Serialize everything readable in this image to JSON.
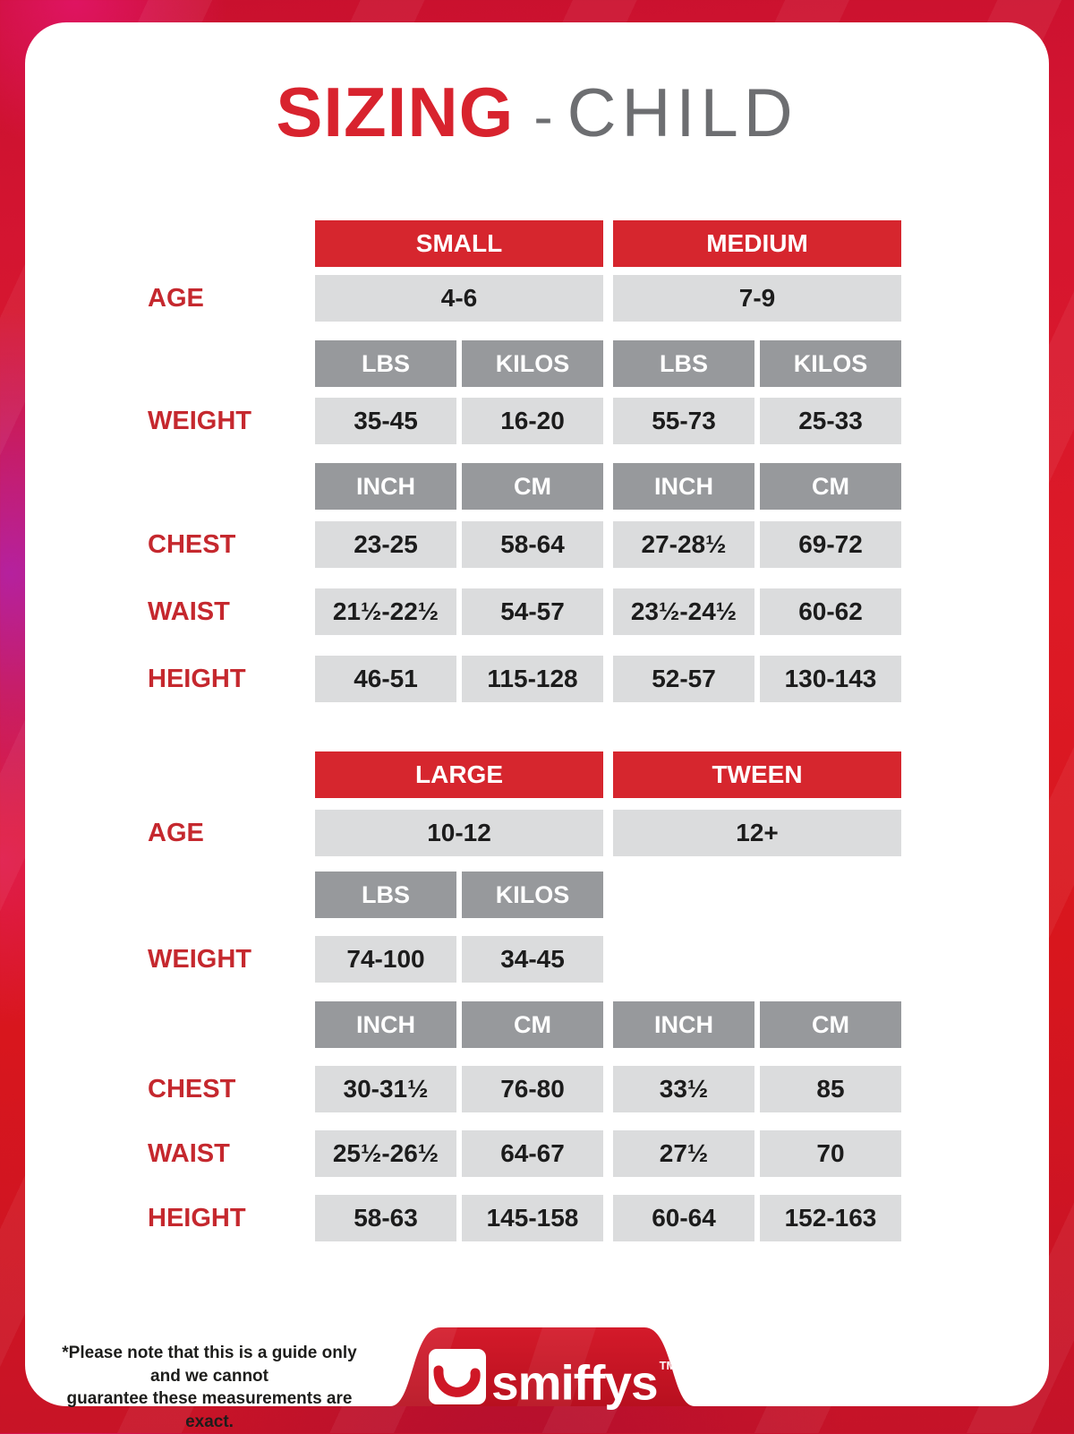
{
  "title": {
    "primary": "SIZING",
    "separator": "-",
    "secondary": "CHILD"
  },
  "colors": {
    "header_red": "#d6262e",
    "subheader_gray": "#97999c",
    "cell_gray": "#dbdcdd",
    "label_red": "#c5282e",
    "title_red": "#d8232e",
    "title_gray": "#6d6e71",
    "text_dark": "#1c1c1c",
    "logo_red": "#cf1726",
    "background_red": "#d8161d",
    "background_magenta": "#b5219e"
  },
  "tables": [
    {
      "name": "small-medium",
      "rows": [
        {
          "type": "size",
          "name": "sizes",
          "label": "",
          "cells": [
            {
              "text": "SMALL",
              "span": 2
            },
            {
              "text": "MEDIUM",
              "span": 2
            }
          ]
        },
        {
          "type": "data",
          "name": "age",
          "label": "AGE",
          "cells": [
            {
              "text": "4-6",
              "span": 2
            },
            {
              "text": "7-9",
              "span": 2
            }
          ]
        },
        {
          "type": "unit",
          "name": "weight-units",
          "label": "",
          "cells": [
            {
              "text": "LBS",
              "span": 1
            },
            {
              "text": "KILOS",
              "span": 1
            },
            {
              "text": "LBS",
              "span": 1
            },
            {
              "text": "KILOS",
              "span": 1
            }
          ]
        },
        {
          "type": "data",
          "name": "weight",
          "label": "WEIGHT",
          "cells": [
            {
              "text": "35-45",
              "span": 1
            },
            {
              "text": "16-20",
              "span": 1
            },
            {
              "text": "55-73",
              "span": 1
            },
            {
              "text": "25-33",
              "span": 1
            }
          ]
        },
        {
          "type": "unit",
          "name": "measure-units",
          "label": "",
          "cells": [
            {
              "text": "INCH",
              "span": 1
            },
            {
              "text": "CM",
              "span": 1
            },
            {
              "text": "INCH",
              "span": 1
            },
            {
              "text": "CM",
              "span": 1
            }
          ]
        },
        {
          "type": "data",
          "name": "chest",
          "label": "CHEST",
          "cells": [
            {
              "text": "23-25",
              "span": 1
            },
            {
              "text": "58-64",
              "span": 1
            },
            {
              "text": "27-28½",
              "span": 1
            },
            {
              "text": "69-72",
              "span": 1
            }
          ]
        },
        {
          "type": "data",
          "name": "waist",
          "label": "WAIST",
          "cells": [
            {
              "text": "21½-22½",
              "span": 1
            },
            {
              "text": "54-57",
              "span": 1
            },
            {
              "text": "23½-24½",
              "span": 1
            },
            {
              "text": "60-62",
              "span": 1
            }
          ]
        },
        {
          "type": "data",
          "name": "height",
          "label": "HEIGHT",
          "cells": [
            {
              "text": "46-51",
              "span": 1
            },
            {
              "text": "115-128",
              "span": 1
            },
            {
              "text": "52-57",
              "span": 1
            },
            {
              "text": "130-143",
              "span": 1
            }
          ]
        }
      ]
    },
    {
      "name": "large-tween",
      "rows": [
        {
          "type": "size",
          "name": "sizes",
          "label": "",
          "cells": [
            {
              "text": "LARGE",
              "span": 2
            },
            {
              "text": "TWEEN",
              "span": 2
            }
          ]
        },
        {
          "type": "data",
          "name": "age",
          "label": "AGE",
          "cells": [
            {
              "text": "10-12",
              "span": 2
            },
            {
              "text": "12+",
              "span": 2
            }
          ]
        },
        {
          "type": "unit",
          "name": "weight-units",
          "label": "",
          "cells": [
            {
              "text": "LBS",
              "span": 1
            },
            {
              "text": "KILOS",
              "span": 1
            }
          ]
        },
        {
          "type": "data",
          "name": "weight",
          "label": "WEIGHT",
          "cells": [
            {
              "text": "74-100",
              "span": 1
            },
            {
              "text": "34-45",
              "span": 1
            }
          ]
        },
        {
          "type": "unit",
          "name": "measure-units",
          "label": "",
          "cells": [
            {
              "text": "INCH",
              "span": 1
            },
            {
              "text": "CM",
              "span": 1
            },
            {
              "text": "INCH",
              "span": 1
            },
            {
              "text": "CM",
              "span": 1
            }
          ]
        },
        {
          "type": "data",
          "name": "chest",
          "label": "CHEST",
          "cells": [
            {
              "text": "30-31½",
              "span": 1
            },
            {
              "text": "76-80",
              "span": 1
            },
            {
              "text": "33½",
              "span": 1
            },
            {
              "text": "85",
              "span": 1
            }
          ]
        },
        {
          "type": "data",
          "name": "waist",
          "label": "WAIST",
          "cells": [
            {
              "text": "25½-26½",
              "span": 1
            },
            {
              "text": "64-67",
              "span": 1
            },
            {
              "text": "27½",
              "span": 1
            },
            {
              "text": "70",
              "span": 1
            }
          ]
        },
        {
          "type": "data",
          "name": "height",
          "label": "HEIGHT",
          "cells": [
            {
              "text": "58-63",
              "span": 1
            },
            {
              "text": "145-158",
              "span": 1
            },
            {
              "text": "60-64",
              "span": 1
            },
            {
              "text": "152-163",
              "span": 1
            }
          ]
        }
      ]
    }
  ],
  "footer": {
    "note_line1": "*Please note that this is a guide only and we cannot",
    "note_line2": "guarantee these measurements are exact.",
    "logo_text": "smiffys",
    "logo_tm": "TM"
  }
}
